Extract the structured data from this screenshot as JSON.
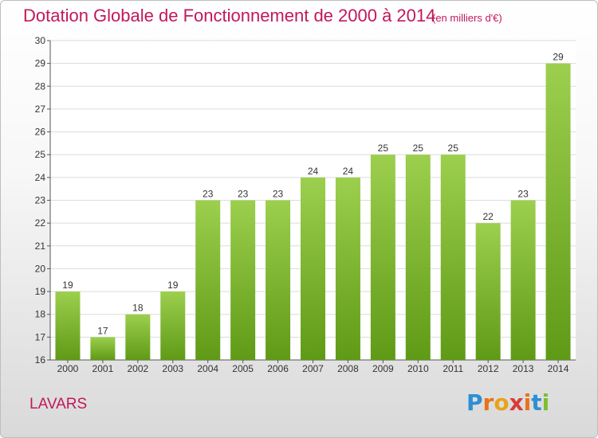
{
  "header": {
    "title": "Dotation Globale de Fonctionnement de 2000 à 2014",
    "subtitle": "(en milliers d'€)"
  },
  "footer": {
    "place": "LAVARS",
    "logo_text": "Proxiti"
  },
  "colors": {
    "title": "#c2185b",
    "bar_light": "#9ccf4e",
    "bar_dark": "#5f9a16"
  },
  "chart_data": {
    "type": "bar",
    "title": "Dotation Globale de Fonctionnement de 2000 à 2014",
    "subtitle": "(en milliers d'€)",
    "categories": [
      "2000",
      "2001",
      "2002",
      "2003",
      "2004",
      "2005",
      "2006",
      "2007",
      "2008",
      "2009",
      "2010",
      "2011",
      "2012",
      "2013",
      "2014"
    ],
    "values": [
      19,
      17,
      18,
      19,
      23,
      23,
      23,
      24,
      24,
      25,
      25,
      25,
      22,
      23,
      29
    ],
    "yticks": [
      16,
      17,
      18,
      19,
      20,
      21,
      22,
      23,
      24,
      25,
      26,
      27,
      28,
      29,
      30
    ],
    "ylim": [
      16,
      30
    ],
    "grid": true,
    "data_labels": true
  }
}
